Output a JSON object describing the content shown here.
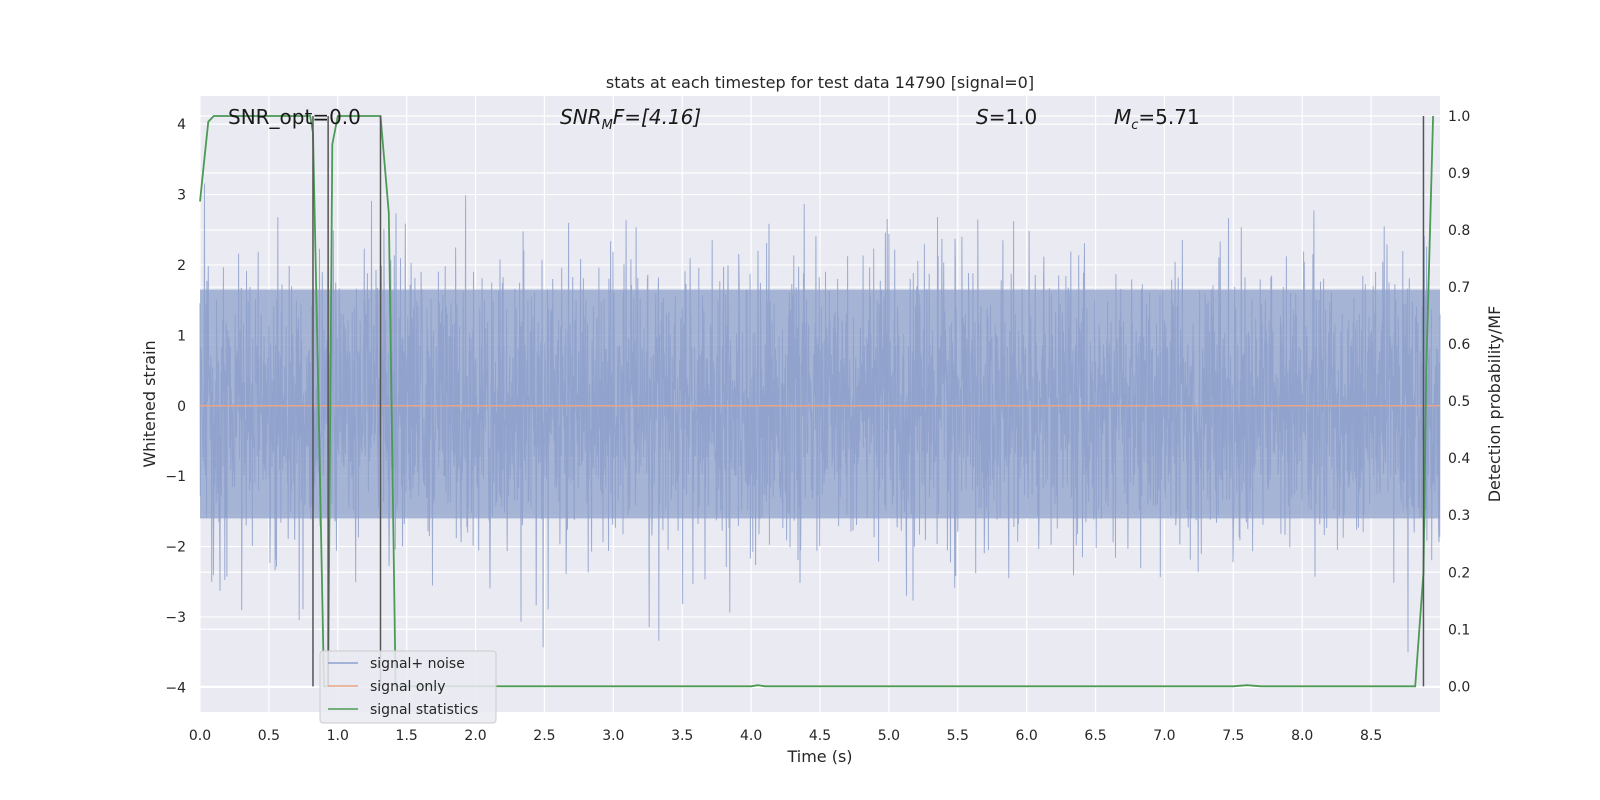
{
  "chart_data": {
    "type": "line",
    "title": "stats at each timestep for test data 14790 [signal=0]",
    "xlabel": "Time (s)",
    "ylabel": "Whitened strain",
    "y2label": "Detection probability/MF",
    "xlim": [
      0.0,
      9.0
    ],
    "ylim": [
      -4.35,
      4.4
    ],
    "y2lim": [
      -0.045,
      1.035
    ],
    "xticks": [
      "0.0",
      "0.5",
      "1.0",
      "1.5",
      "2.0",
      "2.5",
      "3.0",
      "3.5",
      "4.0",
      "4.5",
      "5.0",
      "5.5",
      "6.0",
      "6.5",
      "7.0",
      "7.5",
      "8.0",
      "8.5"
    ],
    "yticks": [
      "4",
      "3",
      "2",
      "1",
      "0",
      "−1",
      "−2",
      "−3",
      "−4"
    ],
    "y2ticks": [
      "1.0",
      "0.9",
      "0.8",
      "0.7",
      "0.6",
      "0.5",
      "0.4",
      "0.3",
      "0.2",
      "0.1",
      "0.0"
    ],
    "grid": true,
    "legend_position": "lower-left",
    "annotations": [
      {
        "label": "SNR_opt=0.0"
      },
      {
        "label": "SNR_MF=[4.16]",
        "prefix": "SNR",
        "sub": "M",
        "suffix": "F=[4.16]"
      },
      {
        "label": "S=1.0",
        "prefix": "S",
        "suffix": "=1.0"
      },
      {
        "label": "M_c=5.71",
        "prefix": "M",
        "sub": "c",
        "suffix": "=5.71"
      }
    ],
    "vertical_lines_x": [
      0.82,
      0.93,
      1.31,
      8.88
    ],
    "series": [
      {
        "name": "signal+ noise",
        "color": "#8da0cb",
        "description": "whitened noise, dense, amplitude approx. -3.5 to 3.5",
        "amplitude_band": [
          -1.6,
          1.65
        ],
        "peak_range": [
          -3.5,
          3.5
        ]
      },
      {
        "name": "signal only",
        "color": "#e9a587",
        "x": [
          0.0,
          9.0
        ],
        "y": [
          0.0,
          0.0
        ]
      },
      {
        "name": "signal statistics",
        "color": "#4c9a55",
        "axis": "right",
        "x": [
          0.0,
          0.03,
          0.06,
          0.1,
          0.2,
          0.5,
          0.7,
          0.8,
          0.82,
          0.86,
          0.9,
          0.93,
          0.96,
          1.0,
          1.1,
          1.31,
          1.37,
          1.42,
          1.5,
          2.0,
          3.0,
          4.0,
          4.05,
          4.1,
          5.0,
          6.0,
          7.0,
          7.5,
          7.6,
          7.7,
          8.0,
          8.5,
          8.82,
          8.88,
          8.9,
          8.95
        ],
        "y": [
          0.85,
          0.92,
          0.99,
          1.0,
          1.0,
          1.0,
          1.0,
          1.0,
          0.97,
          0.5,
          0.0,
          0.0,
          0.95,
          1.0,
          1.0,
          1.0,
          0.83,
          0.0,
          0.0,
          0.0,
          0.0,
          0.0,
          0.002,
          0.0,
          0.0,
          0.0,
          0.0,
          0.0,
          0.002,
          0.0,
          0.0,
          0.0,
          0.0,
          0.2,
          0.55,
          1.0
        ]
      }
    ]
  }
}
